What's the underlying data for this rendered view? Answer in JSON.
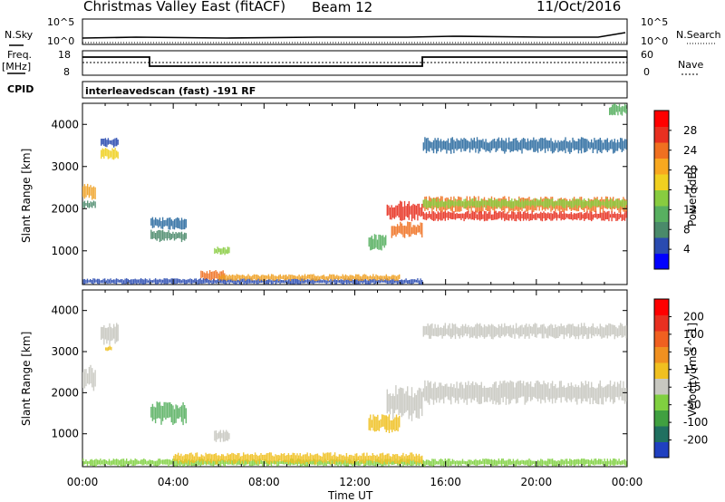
{
  "header": {
    "title": "Christmas Valley East (fitACF)",
    "beam": "Beam 12",
    "date": "11/Oct/2016"
  },
  "status_panels": {
    "nsky_label": "N.Sky",
    "nsky_ticks": [
      "10^5",
      "10^0"
    ],
    "nsearch_label": "N.Search",
    "nsearch_ticks": [
      "10^5",
      "10^0"
    ],
    "freq_label": "Freq.",
    "freq_unit": "[MHz]",
    "freq_ticks": [
      "18",
      "8"
    ],
    "nave_label": "Nave",
    "nave_ticks": [
      "60",
      "0"
    ],
    "cpid_label": "CPID",
    "cpid_text": "interleavedscan (fast) -191 RF"
  },
  "chart_data": [
    {
      "type": "heatmap",
      "title": "",
      "ylabel": "Slant Range [km]",
      "xlabel": "Time UT",
      "x_ticks": [
        "00:00",
        "04:00",
        "08:00",
        "12:00",
        "16:00",
        "20:00",
        "00:00"
      ],
      "y_ticks": [
        "1000",
        "2000",
        "3000",
        "4000"
      ],
      "ylim": [
        200,
        4500
      ],
      "xlim_hours": [
        0,
        24
      ],
      "colorbar": {
        "label": "Power [dB]",
        "ticks": [
          "4",
          "8",
          "12",
          "16",
          "20",
          "24",
          "28"
        ],
        "colors": [
          "#0000ff",
          "#2a4bb0",
          "#4a8a6a",
          "#58b060",
          "#88cc40",
          "#f0d020",
          "#f8a820",
          "#f07020",
          "#e83020",
          "#ff0000"
        ]
      },
      "regions": [
        {
          "t": [
            0.0,
            0.6
          ],
          "r": [
            2200,
            2600
          ],
          "c": "#f0a020"
        },
        {
          "t": [
            0.0,
            0.6
          ],
          "r": [
            2000,
            2200
          ],
          "c": "#4a8a6a"
        },
        {
          "t": [
            0.8,
            1.6
          ],
          "r": [
            3150,
            3450
          ],
          "c": "#f0d020"
        },
        {
          "t": [
            0.8,
            1.6
          ],
          "r": [
            3450,
            3700
          ],
          "c": "#2a4bb0"
        },
        {
          "t": [
            3.0,
            4.6
          ],
          "r": [
            1500,
            1800
          ],
          "c": "#2a6aa0"
        },
        {
          "t": [
            3.0,
            4.6
          ],
          "r": [
            1200,
            1500
          ],
          "c": "#4a8a6a"
        },
        {
          "t": [
            5.8,
            6.5
          ],
          "r": [
            900,
            1100
          ],
          "c": "#88cc40"
        },
        {
          "t": [
            5.2,
            6.3
          ],
          "r": [
            280,
            550
          ],
          "c": "#f07020"
        },
        {
          "t": [
            0.0,
            15.0
          ],
          "r": [
            200,
            350
          ],
          "c": "#2a4bb0"
        },
        {
          "t": [
            6.0,
            14.0
          ],
          "r": [
            280,
            450
          ],
          "c": "#f0a020"
        },
        {
          "t": [
            12.6,
            13.4
          ],
          "r": [
            1000,
            1400
          ],
          "c": "#58b060"
        },
        {
          "t": [
            13.4,
            15.0
          ],
          "r": [
            1700,
            2200
          ],
          "c": "#e83020"
        },
        {
          "t": [
            13.6,
            15.0
          ],
          "r": [
            1300,
            1700
          ],
          "c": "#f07020"
        },
        {
          "t": [
            15.0,
            24.0
          ],
          "r": [
            1900,
            2300
          ],
          "c": "#f07020"
        },
        {
          "t": [
            15.0,
            24.0
          ],
          "r": [
            2000,
            2250
          ],
          "c": "#88cc40"
        },
        {
          "t": [
            15.0,
            24.0
          ],
          "r": [
            1700,
            1950
          ],
          "c": "#e83020"
        },
        {
          "t": [
            15.0,
            24.0
          ],
          "r": [
            3300,
            3700
          ],
          "c": "#2a6aa0"
        },
        {
          "t": [
            23.2,
            24.0
          ],
          "r": [
            4200,
            4500
          ],
          "c": "#58b060"
        }
      ]
    },
    {
      "type": "heatmap",
      "title": "",
      "ylabel": "Slant Range [km]",
      "xlabel": "Time UT",
      "x_ticks": [
        "00:00",
        "04:00",
        "08:00",
        "12:00",
        "16:00",
        "20:00",
        "00:00"
      ],
      "y_ticks": [
        "1000",
        "2000",
        "3000",
        "4000"
      ],
      "ylim": [
        200,
        4500
      ],
      "xlim_hours": [
        0,
        24
      ],
      "colorbar": {
        "label": "Velocity [m s^-1]",
        "ticks": [
          "200",
          "100",
          "50",
          "15",
          "-15",
          "-50",
          "-100",
          "-200"
        ],
        "colors": [
          "#2040c0",
          "#207060",
          "#40a040",
          "#80d040",
          "#c8c8c0",
          "#f0c020",
          "#f09020",
          "#f06020",
          "#e83020",
          "#ff0000"
        ]
      },
      "regions": [
        {
          "t": [
            0.0,
            0.6
          ],
          "r": [
            2000,
            2700
          ],
          "c": "#c8c8c0"
        },
        {
          "t": [
            0.8,
            1.6
          ],
          "r": [
            3150,
            3700
          ],
          "c": "#c8c8c0"
        },
        {
          "t": [
            1.0,
            1.3
          ],
          "r": [
            3000,
            3150
          ],
          "c": "#f0c020"
        },
        {
          "t": [
            3.0,
            4.6
          ],
          "r": [
            1200,
            1800
          ],
          "c": "#58b060"
        },
        {
          "t": [
            5.8,
            6.5
          ],
          "r": [
            800,
            1100
          ],
          "c": "#c8c8c0"
        },
        {
          "t": [
            0.0,
            24.0
          ],
          "r": [
            200,
            400
          ],
          "c": "#80d040"
        },
        {
          "t": [
            4.0,
            15.0
          ],
          "r": [
            250,
            550
          ],
          "c": "#f0c020"
        },
        {
          "t": [
            12.6,
            14.0
          ],
          "r": [
            1000,
            1500
          ],
          "c": "#f0c020"
        },
        {
          "t": [
            13.4,
            15.0
          ],
          "r": [
            1300,
            2200
          ],
          "c": "#c8c8c0"
        },
        {
          "t": [
            15.0,
            24.0
          ],
          "r": [
            1700,
            2300
          ],
          "c": "#c8c8c0"
        },
        {
          "t": [
            15.0,
            24.0
          ],
          "r": [
            3300,
            3700
          ],
          "c": "#c8c8c0"
        }
      ]
    }
  ]
}
